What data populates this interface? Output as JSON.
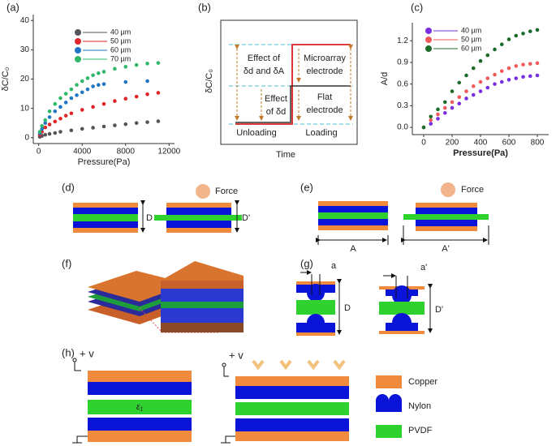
{
  "chart_data": [
    {
      "type": "scatter",
      "label": "(a)",
      "x_label": "Pressure(Pa)",
      "y_label": "δC/C₀",
      "xlim": [
        -500,
        12500
      ],
      "xticks": [
        0,
        4000,
        8000,
        12000
      ],
      "ylim": [
        -2,
        42
      ],
      "yticks": [
        0,
        10,
        20,
        30,
        40
      ],
      "series": [
        {
          "name": "40 µm",
          "color": "#555555",
          "x": [
            100,
            300,
            600,
            1000,
            1500,
            2000,
            3000,
            4000,
            5000,
            6000,
            7000,
            8000,
            9000,
            10000,
            11000
          ],
          "values": [
            0.3,
            0.6,
            1,
            1.3,
            1.6,
            2,
            2.5,
            3,
            3.4,
            3.8,
            4.2,
            4.6,
            5,
            5.3,
            5.6
          ]
        },
        {
          "name": "50 µm",
          "color": "#e0262a",
          "x": [
            100,
            300,
            600,
            1000,
            1500,
            2000,
            2500,
            3000,
            4000,
            5000,
            6000,
            7000,
            8000,
            9000,
            10000,
            11000
          ],
          "values": [
            1,
            2,
            3.5,
            4.5,
            5.5,
            6.5,
            7.5,
            8.3,
            9.5,
            10.5,
            11.5,
            12.5,
            13.3,
            14,
            14.8,
            15.3
          ]
        },
        {
          "name": "60 µm",
          "color": "#1f77c4",
          "x": [
            100,
            300,
            600,
            1000,
            1500,
            2000,
            2500,
            3000,
            3500,
            4000,
            4500,
            5000,
            5500,
            6000,
            8000,
            10000
          ],
          "values": [
            1.5,
            3,
            5,
            7,
            9,
            10.5,
            12,
            13.5,
            14.5,
            15.5,
            16.5,
            17.5,
            18,
            18.3,
            19,
            19.3
          ]
        },
        {
          "name": "70 µm",
          "color": "#2fb86a",
          "x": [
            100,
            300,
            600,
            1000,
            1500,
            2000,
            2500,
            3000,
            3500,
            4000,
            4500,
            5000,
            5500,
            6000,
            7000,
            8000,
            9000,
            10000,
            11000
          ],
          "values": [
            2,
            4,
            6,
            9,
            11.5,
            13.5,
            15,
            16.5,
            18,
            19.3,
            20.3,
            21.3,
            22,
            22.5,
            23.5,
            24.2,
            24.8,
            25.3,
            25.5
          ]
        }
      ]
    },
    {
      "type": "scatter",
      "label": "(c)",
      "x_label": "Pressure(Pa)",
      "y_label": "A/d",
      "xlim": [
        -80,
        880
      ],
      "xticks": [
        0,
        200,
        400,
        600,
        800
      ],
      "ylim": [
        -0.1,
        1.45
      ],
      "yticks": [
        {
          "value": 0,
          "label": "0.0"
        },
        0.3,
        0.6,
        0.9,
        1.2
      ],
      "series": [
        {
          "name": "40 µm",
          "color": "#7a2fe0",
          "x": [
            50,
            100,
            150,
            200,
            250,
            300,
            350,
            400,
            450,
            500,
            550,
            600,
            650,
            700,
            750,
            800
          ],
          "values": [
            0.05,
            0.12,
            0.2,
            0.27,
            0.33,
            0.4,
            0.45,
            0.5,
            0.55,
            0.6,
            0.63,
            0.66,
            0.68,
            0.7,
            0.71,
            0.72
          ]
        },
        {
          "name": "50 µm",
          "color": "#ef5a5a",
          "x": [
            0,
            50,
            100,
            150,
            200,
            250,
            300,
            350,
            400,
            450,
            500,
            550,
            600,
            650,
            700,
            750,
            800
          ],
          "values": [
            0,
            0.1,
            0.18,
            0.27,
            0.35,
            0.42,
            0.5,
            0.57,
            0.63,
            0.68,
            0.73,
            0.78,
            0.82,
            0.85,
            0.87,
            0.88,
            0.89
          ]
        },
        {
          "name": "60 µm",
          "color": "#1d6b2a",
          "x": [
            0,
            50,
            100,
            150,
            200,
            250,
            300,
            350,
            400,
            450,
            500,
            550,
            600,
            650,
            700,
            750,
            800
          ],
          "values": [
            0,
            0.15,
            0.25,
            0.35,
            0.5,
            0.62,
            0.72,
            0.82,
            0.92,
            1.0,
            1.08,
            1.15,
            1.22,
            1.27,
            1.3,
            1.33,
            1.35
          ]
        }
      ]
    }
  ],
  "panels": {
    "b": {
      "label": "(b)",
      "y_label": "δC/C₀",
      "x_label": "Time",
      "effect_both_1": "Effect of",
      "effect_both_2": "δd and δA",
      "effect_d_1": "Effect",
      "effect_d_2": "of δd",
      "micro_1": "Microarray",
      "micro_2": "electrode",
      "flat_1": "Flat",
      "flat_2": "electrode",
      "unloading": "Unloading",
      "loading": "Loading"
    },
    "d": {
      "label": "(d)",
      "force": "Force",
      "d": "D",
      "d_prime": "D'"
    },
    "e": {
      "label": "(e)",
      "force": "Force",
      "a": "A",
      "a_prime": "A'"
    },
    "f": {
      "label": "(f)"
    },
    "g": {
      "label": "(g)",
      "a": "a",
      "a_prime": "a'",
      "d": "D",
      "d_prime": "D'"
    },
    "h": {
      "label": "(h)",
      "v_left": "+ v",
      "v_right": "+ v",
      "epsilon": "ε₁",
      "legend": [
        "Copper",
        "Nylon",
        "PVDF"
      ]
    }
  }
}
